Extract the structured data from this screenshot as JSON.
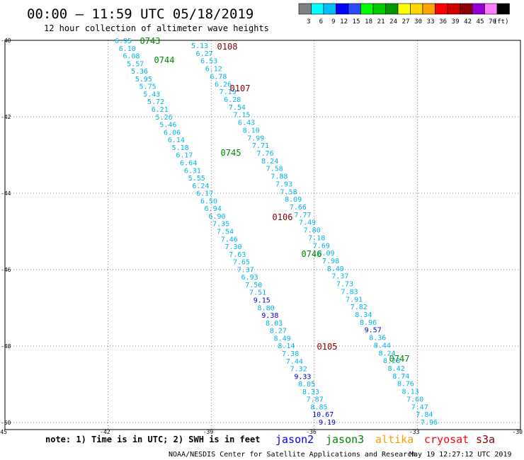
{
  "header": {
    "title": "00:00 – 11:59 UTC 05/18/2019",
    "subtitle": "12 hour collection of altimeter wave heights"
  },
  "scale": {
    "colors": [
      "#808080",
      "#00ffff",
      "#00bfff",
      "#0000ff",
      "#2b4bff",
      "#00ff00",
      "#00c800",
      "#009600",
      "#ffff00",
      "#ffd700",
      "#ffa500",
      "#ff0000",
      "#d20000",
      "#8b0000",
      "#9400d3",
      "#ff80ff",
      "#000000"
    ],
    "labels": [
      "3",
      "6",
      "9",
      "12",
      "15",
      "18",
      "21",
      "24",
      "27",
      "30",
      "33",
      "36",
      "39",
      "42",
      "45",
      "70",
      "(ft)"
    ]
  },
  "map": {
    "lon_ticks": [
      {
        "value": -45,
        "label": "-45"
      },
      {
        "value": -42,
        "label": "-42"
      },
      {
        "value": -39,
        "label": "-39"
      },
      {
        "value": -36,
        "label": "-36"
      },
      {
        "value": -33,
        "label": "-33"
      },
      {
        "value": -30,
        "label": "-30"
      }
    ],
    "lat_ticks": [
      {
        "value": -40,
        "label": "-40"
      },
      {
        "value": -42,
        "label": "-42"
      },
      {
        "value": -44,
        "label": "-44"
      },
      {
        "value": -46,
        "label": "-46"
      },
      {
        "value": -48,
        "label": "-48"
      },
      {
        "value": -50,
        "label": "-50"
      }
    ],
    "grid_lines": true
  },
  "colors": {
    "cyan_obs": "#00b4e6",
    "blue_obs": "#0000cc",
    "time_green": "#008800",
    "time_darkred": "#8b0000"
  },
  "observations": {
    "track_a": [
      {
        "v": "6.95",
        "c": "cyan"
      },
      {
        "v": "6.10",
        "c": "cyan"
      },
      {
        "v": "6.08",
        "c": "cyan"
      },
      {
        "v": "5.57",
        "c": "cyan"
      },
      {
        "v": "5.36",
        "c": "cyan"
      },
      {
        "v": "5.95",
        "c": "cyan"
      },
      {
        "v": "5.75",
        "c": "cyan"
      },
      {
        "v": "5.43",
        "c": "cyan"
      },
      {
        "v": "5.72",
        "c": "cyan"
      },
      {
        "v": "6.21",
        "c": "cyan"
      },
      {
        "v": "5.26",
        "c": "cyan"
      },
      {
        "v": "5.46",
        "c": "cyan"
      },
      {
        "v": "6.06",
        "c": "cyan"
      },
      {
        "v": "6.14",
        "c": "cyan"
      },
      {
        "v": "5.18",
        "c": "cyan"
      },
      {
        "v": "6.17",
        "c": "cyan"
      },
      {
        "v": "6.64",
        "c": "cyan"
      },
      {
        "v": "6.31",
        "c": "cyan"
      },
      {
        "v": "5.55",
        "c": "cyan"
      },
      {
        "v": "6.24",
        "c": "cyan"
      },
      {
        "v": "6.17",
        "c": "cyan"
      },
      {
        "v": "6.50",
        "c": "cyan"
      },
      {
        "v": "6.94",
        "c": "cyan"
      },
      {
        "v": "6.90",
        "c": "cyan"
      },
      {
        "v": "7.35",
        "c": "cyan"
      },
      {
        "v": "7.54",
        "c": "cyan"
      },
      {
        "v": "7.46",
        "c": "cyan"
      },
      {
        "v": "7.30",
        "c": "cyan"
      },
      {
        "v": "7.63",
        "c": "cyan"
      },
      {
        "v": "7.65",
        "c": "cyan"
      },
      {
        "v": "7.37",
        "c": "cyan"
      },
      {
        "v": "6.93",
        "c": "cyan"
      },
      {
        "v": "7.50",
        "c": "cyan"
      },
      {
        "v": "7.51",
        "c": "cyan"
      },
      {
        "v": "9.15",
        "c": "blue"
      },
      {
        "v": "8.80",
        "c": "cyan"
      },
      {
        "v": "9.38",
        "c": "blue"
      },
      {
        "v": "8.03",
        "c": "cyan"
      },
      {
        "v": "8.27",
        "c": "cyan"
      },
      {
        "v": "8.49",
        "c": "cyan"
      },
      {
        "v": "8.14",
        "c": "cyan"
      },
      {
        "v": "7.38",
        "c": "cyan"
      },
      {
        "v": "7.44",
        "c": "cyan"
      },
      {
        "v": "7.32",
        "c": "cyan"
      },
      {
        "v": "9.33",
        "c": "blue"
      },
      {
        "v": "8.05",
        "c": "cyan"
      },
      {
        "v": "8.33",
        "c": "cyan"
      },
      {
        "v": "7.87",
        "c": "cyan"
      },
      {
        "v": "8.85",
        "c": "cyan"
      },
      {
        "v": "10.67",
        "c": "blue"
      },
      {
        "v": "9.19",
        "c": "blue"
      }
    ],
    "track_b": [
      {
        "v": "5.13",
        "c": "cyan"
      },
      {
        "v": "6.27",
        "c": "cyan"
      },
      {
        "v": "6.53",
        "c": "cyan"
      },
      {
        "v": "6.12",
        "c": "cyan"
      },
      {
        "v": "6.78",
        "c": "cyan"
      },
      {
        "v": "6.26",
        "c": "cyan"
      },
      {
        "v": "7.19",
        "c": "cyan"
      },
      {
        "v": "6.28",
        "c": "cyan"
      },
      {
        "v": "7.54",
        "c": "cyan"
      },
      {
        "v": "7.15",
        "c": "cyan"
      },
      {
        "v": "6.43",
        "c": "cyan"
      },
      {
        "v": "8.10",
        "c": "cyan"
      },
      {
        "v": "7.99",
        "c": "cyan"
      },
      {
        "v": "7.71",
        "c": "cyan"
      },
      {
        "v": "7.76",
        "c": "cyan"
      },
      {
        "v": "8.24",
        "c": "cyan"
      },
      {
        "v": "7.58",
        "c": "cyan"
      },
      {
        "v": "7.88",
        "c": "cyan"
      },
      {
        "v": "7.93",
        "c": "cyan"
      },
      {
        "v": "7.58",
        "c": "cyan"
      },
      {
        "v": "8.09",
        "c": "cyan"
      },
      {
        "v": "7.66",
        "c": "cyan"
      },
      {
        "v": "7.77",
        "c": "cyan"
      },
      {
        "v": "7.49",
        "c": "cyan"
      },
      {
        "v": "7.80",
        "c": "cyan"
      },
      {
        "v": "7.18",
        "c": "cyan"
      },
      {
        "v": "7.69",
        "c": "cyan"
      },
      {
        "v": "8.09",
        "c": "cyan"
      },
      {
        "v": "7.98",
        "c": "cyan"
      },
      {
        "v": "8.40",
        "c": "cyan"
      },
      {
        "v": "7.37",
        "c": "cyan"
      },
      {
        "v": "7.73",
        "c": "cyan"
      },
      {
        "v": "7.83",
        "c": "cyan"
      },
      {
        "v": "7.91",
        "c": "cyan"
      },
      {
        "v": "7.82",
        "c": "cyan"
      },
      {
        "v": "8.34",
        "c": "cyan"
      },
      {
        "v": "8.96",
        "c": "cyan"
      },
      {
        "v": "9.57",
        "c": "blue"
      },
      {
        "v": "8.36",
        "c": "cyan"
      },
      {
        "v": "8.44",
        "c": "cyan"
      },
      {
        "v": "8.24",
        "c": "cyan"
      },
      {
        "v": "8.28",
        "c": "cyan"
      },
      {
        "v": "8.42",
        "c": "cyan"
      },
      {
        "v": "8.74",
        "c": "cyan"
      },
      {
        "v": "8.76",
        "c": "cyan"
      },
      {
        "v": "8.13",
        "c": "cyan"
      },
      {
        "v": "7.60",
        "c": "cyan"
      },
      {
        "v": "7.47",
        "c": "cyan"
      },
      {
        "v": "7.84",
        "c": "cyan"
      },
      {
        "v": "7.96",
        "c": "cyan"
      }
    ]
  },
  "time_labels": [
    {
      "text": "0743",
      "c": "green"
    },
    {
      "text": "0744",
      "c": "green"
    },
    {
      "text": "0745",
      "c": "green"
    },
    {
      "text": "0746",
      "c": "green"
    },
    {
      "text": "0747",
      "c": "green"
    },
    {
      "text": "0108",
      "c": "darkred"
    },
    {
      "text": "0107",
      "c": "darkred"
    },
    {
      "text": "0106",
      "c": "darkred"
    },
    {
      "text": "0105",
      "c": "darkred"
    }
  ],
  "footer": {
    "note": "note: 1) Time is in UTC; 2) SWH is in feet",
    "satellites": [
      {
        "name": "jason2",
        "color": "#0000ff"
      },
      {
        "name": "jason3",
        "color": "#008800"
      },
      {
        "name": "altika",
        "color": "#ff9900"
      },
      {
        "name": "cryosat",
        "color": "#ff0000"
      },
      {
        "name": "s3a",
        "color": "#8b0000"
      }
    ],
    "credit": "NOAA/NESDIS Center for Satellite Applications and Research",
    "timestamp": "May 19 12:27:12 UTC 2019"
  }
}
